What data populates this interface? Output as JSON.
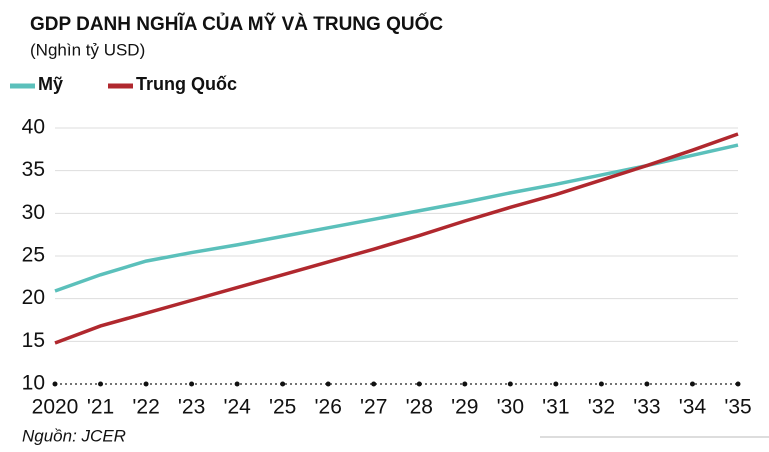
{
  "chart_data": {
    "type": "line",
    "title": "GDP DANH NGHĨA CỦA MỸ VÀ TRUNG QUỐC",
    "subtitle": "(Nghìn tỷ USD)",
    "source": "Nguồn: JCER",
    "categories": [
      "2020",
      "'21",
      "'22",
      "'23",
      "'24",
      "'25",
      "'26",
      "'27",
      "'28",
      "'29",
      "'30",
      "'31",
      "'32",
      "'33",
      "'34",
      "'35"
    ],
    "series": [
      {
        "name": "Mỹ",
        "color": "#5bc0bb",
        "values": [
          20.9,
          22.8,
          24.4,
          25.4,
          26.3,
          27.3,
          28.3,
          29.3,
          30.3,
          31.3,
          32.4,
          33.4,
          34.5,
          35.6,
          36.8,
          38.0
        ]
      },
      {
        "name": "Trung Quốc",
        "color": "#b0282e",
        "values": [
          14.8,
          16.8,
          18.3,
          19.8,
          21.3,
          22.8,
          24.3,
          25.8,
          27.4,
          29.1,
          30.7,
          32.2,
          33.9,
          35.6,
          37.4,
          39.3
        ]
      }
    ],
    "ylim": [
      10,
      40
    ],
    "yticks": [
      10,
      15,
      20,
      25,
      30,
      35,
      40
    ],
    "grid": true
  }
}
